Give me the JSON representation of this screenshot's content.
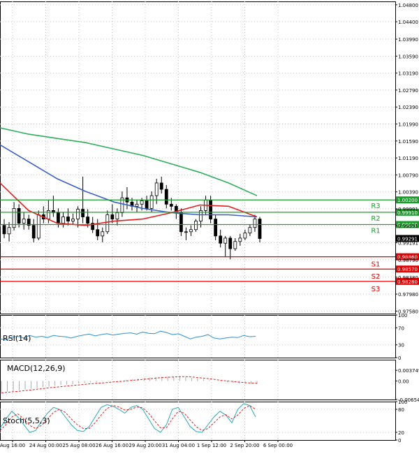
{
  "chart_data": [
    {
      "panel": "main",
      "type": "candlestick",
      "ylim": [
        0.9752,
        1.0488
      ],
      "grid": true,
      "price_ticks": [
        "1.04800",
        "1.04400",
        "1.03990",
        "1.03590",
        "1.03190",
        "1.02790",
        "1.02390",
        "1.01990",
        "1.01590",
        "1.01190",
        "1.00790",
        "1.00390",
        "0.99991",
        "0.99591",
        "0.99191",
        "0.98790",
        "0.98380",
        "0.97980",
        "0.97580"
      ],
      "price_tick_values": [
        1.048,
        1.044,
        1.0399,
        1.0359,
        1.0319,
        1.0279,
        1.0239,
        1.0199,
        1.0159,
        1.0119,
        1.0079,
        1.0039,
        0.99991,
        0.99591,
        0.99191,
        0.9879,
        0.9838,
        0.9798,
        0.9758
      ],
      "current_price": {
        "label": "0.99291",
        "value": 0.99291,
        "color": "#000000"
      },
      "levels": [
        {
          "name": "R3",
          "value": 1.002,
          "label": "1.00200",
          "color": "#1a9e2a"
        },
        {
          "name": "R2",
          "value": 0.9991,
          "label": "0.99910",
          "color": "#1a9e2a"
        },
        {
          "name": "R1",
          "value": 0.9962,
          "label": "0.99620",
          "color": "#1a9e2a"
        },
        {
          "name": "S1",
          "value": 0.9886,
          "label": "0.98860",
          "color": "#e00000"
        },
        {
          "name": "S2",
          "value": 0.9857,
          "label": "0.98570",
          "color": "#e00000"
        },
        {
          "name": "S3",
          "value": 0.9828,
          "label": "0.98280",
          "color": "#e00000"
        }
      ],
      "x_labels": [
        "Aug 16:00",
        "24 Aug 00:00",
        "25 Aug 08:00",
        "26 Aug 16:00",
        "29 Aug 20:00",
        "31 Aug 04:00",
        "1 Sep 12:00",
        "2 Sep 20:00",
        "6 Sep 00:00"
      ],
      "candles": [
        [
          0.996,
          0.9975,
          0.993,
          0.994
        ],
        [
          0.994,
          0.9968,
          0.9922,
          0.9955
        ],
        [
          0.9955,
          1.0015,
          0.9948,
          1.0
        ],
        [
          1.0,
          1.001,
          0.9955,
          0.9965
        ],
        [
          0.9965,
          0.999,
          0.995,
          0.9975
        ],
        [
          0.9975,
          0.9985,
          0.995,
          0.996
        ],
        [
          0.996,
          0.9975,
          0.992,
          0.993
        ],
        [
          0.993,
          0.9995,
          0.9925,
          0.9985
        ],
        [
          0.9985,
          1.0005,
          0.9965,
          0.9975
        ],
        [
          0.9975,
          1.002,
          0.9965,
          0.9995
        ],
        [
          0.9995,
          1.003,
          0.998,
          0.999
        ],
        [
          0.999,
          1.0,
          0.9955,
          0.9965
        ],
        [
          0.9965,
          0.999,
          0.9955,
          0.998
        ],
        [
          0.998,
          1.0,
          0.996,
          0.997
        ],
        [
          0.997,
          0.9988,
          0.9962,
          0.9975
        ],
        [
          0.9975,
          1.0005,
          0.9955,
          0.9998
        ],
        [
          0.9998,
          1.0075,
          0.9965,
          0.998
        ],
        [
          0.998,
          0.9998,
          0.9955,
          0.9965
        ],
        [
          0.9965,
          0.998,
          0.9942,
          0.995
        ],
        [
          0.995,
          0.9975,
          0.9925,
          0.9935
        ],
        [
          0.9935,
          0.9955,
          0.992,
          0.9945
        ],
        [
          0.9945,
          0.9995,
          0.994,
          0.9985
        ],
        [
          0.9985,
          1.001,
          0.9965,
          0.9975
        ],
        [
          0.9975,
          1.0,
          0.996,
          0.999
        ],
        [
          0.999,
          1.004,
          0.998,
          1.0025
        ],
        [
          1.0025,
          1.005,
          0.9998,
          1.0015
        ],
        [
          1.0015,
          1.0025,
          0.9995,
          1.0005
        ],
        [
          1.0005,
          1.002,
          0.999,
          1.001
        ],
        [
          1.001,
          1.0025,
          0.9995,
          1.0018
        ],
        [
          1.0018,
          1.003,
          0.9995,
          1.0
        ],
        [
          1.0,
          1.004,
          0.999,
          1.003
        ],
        [
          1.003,
          1.007,
          1.001,
          1.006
        ],
        [
          1.006,
          1.0075,
          1.0035,
          1.0045
        ],
        [
          1.0045,
          1.0055,
          1.0,
          1.001
        ],
        [
          1.001,
          1.0025,
          0.9995,
          1.0005
        ],
        [
          1.0005,
          1.001,
          0.9975,
          0.999
        ],
        [
          0.999,
          1.0,
          0.9935,
          0.9945
        ],
        [
          0.9945,
          0.9955,
          0.9925,
          0.9945
        ],
        [
          0.9945,
          0.996,
          0.9935,
          0.995
        ],
        [
          0.995,
          0.9975,
          0.9945,
          0.997
        ],
        [
          0.997,
          1.0005,
          0.9955,
          0.9995
        ],
        [
          0.9995,
          1.003,
          0.9985,
          1.002
        ],
        [
          1.002,
          1.003,
          0.9965,
          0.9975
        ],
        [
          0.9975,
          0.9985,
          0.9925,
          0.9935
        ],
        [
          0.9935,
          0.995,
          0.9908,
          0.9918
        ],
        [
          0.9918,
          0.9935,
          0.9885,
          0.993
        ],
        [
          0.993,
          0.9935,
          0.988,
          0.9905
        ],
        [
          0.9905,
          0.993,
          0.99,
          0.9922
        ],
        [
          0.9922,
          0.994,
          0.9912,
          0.993
        ],
        [
          0.993,
          0.995,
          0.9925,
          0.9942
        ],
        [
          0.9942,
          0.9962,
          0.9935,
          0.9955
        ],
        [
          0.9955,
          0.9985,
          0.9945,
          0.9975
        ],
        [
          0.9975,
          0.998,
          0.992,
          0.9929
        ]
      ],
      "ma_series": [
        {
          "color": "#2fae5a",
          "values": [
            1.019,
            1.0175,
            1.0165,
            1.0155,
            1.014,
            1.0125,
            1.0105,
            1.0085,
            1.006,
            1.003
          ]
        },
        {
          "color": "#3a5fcd",
          "values": [
            1.015,
            1.011,
            1.007,
            1.004,
            1.0015,
            1.0,
            0.999,
            0.9985,
            0.9985,
            0.998
          ]
        },
        {
          "color": "#e21e1e",
          "values": [
            1.006,
            0.9995,
            0.9965,
            0.996,
            0.997,
            0.9975,
            0.999,
            1.0008,
            1.0005,
            0.998
          ]
        }
      ]
    },
    {
      "panel": "rsi",
      "type": "line",
      "ylim": [
        0,
        100
      ],
      "ticks": [
        "100",
        "70",
        "30",
        "0"
      ],
      "tick_values": [
        100,
        70,
        30,
        0
      ],
      "series": [
        {
          "name": "RSI(14)",
          "color": "#2e8fd6",
          "values": [
            44,
            42,
            48,
            50,
            46,
            52,
            48,
            50,
            47,
            52,
            50,
            49,
            46,
            50,
            53,
            55,
            51,
            54,
            56,
            53,
            55,
            57,
            58,
            55,
            60,
            57,
            56,
            62,
            59,
            54,
            56,
            50,
            44,
            48,
            50,
            54,
            46,
            44,
            46,
            48,
            47,
            52,
            49,
            50
          ]
        }
      ]
    },
    {
      "panel": "macd",
      "type": "bar",
      "ylim": [
        -0.00654,
        0.00749
      ],
      "ticks": [
        "0.003749",
        "0.00",
        "-0.00654"
      ],
      "tick_values": [
        0.003749,
        0.0,
        -0.00654
      ],
      "series": [
        {
          "name": "MACD(12,26,9)",
          "color": "#aaaaaa",
          "values": [
            -0.004,
            -0.0037,
            -0.0035,
            -0.0032,
            -0.003,
            -0.0027,
            -0.0025,
            -0.0022,
            -0.002,
            -0.0017,
            -0.0015,
            -0.0013,
            -0.0011,
            -0.0009,
            -0.0007,
            -0.0005,
            -0.0004,
            -0.0002,
            -0.0001,
            0.0,
            0.0002,
            0.0004,
            0.0006,
            0.0008,
            0.001,
            0.0012,
            0.0014,
            0.0015,
            0.0016,
            0.0016,
            0.0015,
            0.0013,
            0.0011,
            0.0009,
            0.0006,
            0.0003,
            0.0,
            -0.0003,
            -0.0005,
            -0.0007,
            -0.0009,
            -0.001,
            -0.001,
            -0.0011
          ]
        },
        {
          "name": "signal",
          "color": "#e21e1e",
          "values": [
            -0.0042,
            -0.004,
            -0.0038,
            -0.0036,
            -0.0034,
            -0.0032,
            -0.0029,
            -0.0027,
            -0.0024,
            -0.0022,
            -0.002,
            -0.0018,
            -0.0016,
            -0.0014,
            -0.0012,
            -0.001,
            -0.0008,
            -0.0007,
            -0.0005,
            -0.0003,
            -0.0002,
            0.0,
            0.0002,
            0.0004,
            0.0006,
            0.0008,
            0.001,
            0.0012,
            0.0013,
            0.0014,
            0.0015,
            0.0015,
            0.0014,
            0.0012,
            0.001,
            0.0008,
            0.0005,
            0.0002,
            0.0,
            -0.0002,
            -0.0004,
            -0.0006,
            -0.0007,
            -0.0008
          ]
        }
      ]
    },
    {
      "panel": "stoch",
      "type": "line",
      "ylim": [
        0,
        100
      ],
      "ticks": [
        "100",
        "80",
        "20",
        "0"
      ],
      "tick_values": [
        100,
        80,
        20,
        0
      ],
      "series": [
        {
          "name": "Stoch(5,5,3)",
          "color": "#2aa8b8",
          "values": [
            30,
            55,
            75,
            60,
            40,
            20,
            25,
            50,
            70,
            85,
            80,
            60,
            40,
            25,
            22,
            35,
            60,
            85,
            92,
            88,
            80,
            70,
            85,
            90,
            80,
            55,
            30,
            20,
            40,
            80,
            85,
            60,
            35,
            22,
            20,
            40,
            60,
            75,
            65,
            45,
            80,
            95,
            90,
            60
          ]
        },
        {
          "name": "signal",
          "color": "#e21e1e",
          "values": [
            25,
            40,
            60,
            68,
            55,
            38,
            30,
            38,
            55,
            72,
            80,
            72,
            55,
            40,
            30,
            30,
            45,
            65,
            82,
            90,
            86,
            78,
            80,
            86,
            84,
            70,
            50,
            32,
            32,
            55,
            75,
            70,
            52,
            35,
            25,
            30,
            45,
            60,
            66,
            55,
            65,
            82,
            90,
            80
          ]
        }
      ]
    }
  ],
  "labels": {
    "rsi": "RSI(14)",
    "macd": "MACD(12,26,9)",
    "stoch": "Stoch(5,5,3)"
  }
}
